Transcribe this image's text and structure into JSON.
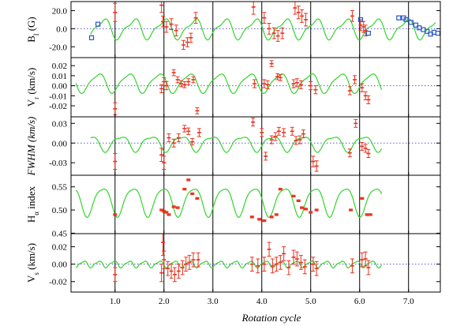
{
  "chart_data": {
    "type": "scatter",
    "description": "Five stacked time-series panels sharing a rotation-cycle x axis; red points with error bars are measurements, green curves are model fits, blue squares are additional B_l measurements.",
    "xlabel": "Rotation cycle",
    "xlim": [
      0.1,
      7.65
    ],
    "xticks": [
      1.0,
      2.0,
      3.0,
      4.0,
      5.0,
      6.0,
      7.0
    ],
    "xtick_labels": [
      "1.0",
      "2.0",
      "3.0",
      "4.0",
      "5.0",
      "6.0",
      "7.0"
    ],
    "vertical_grid": [
      1,
      2,
      3,
      4,
      5,
      6,
      7
    ],
    "zero_line": "dotted blue",
    "colors": {
      "data": "#e8321e",
      "model": "#33d42c",
      "blue_data": "#2a55c9",
      "zero": "#5b5bd8",
      "axis": "#000000"
    },
    "panels": [
      {
        "id": "bl",
        "ylabel_main": "B",
        "ylabel_sub": "l",
        "ylabel_rest": " (G)",
        "ylim": [
          -32,
          30
        ],
        "yticks": [
          20,
          0,
          -20
        ],
        "ytick_labels": [
          "20.0",
          "0.0",
          "-20.0"
        ],
        "zero_line": true,
        "model": {
          "base": 0,
          "amp": 10,
          "period": 0.62,
          "phase": 0.03,
          "h2amp": 0.35,
          "h2phase": 0.5,
          "x0": 0.5,
          "x1": 7.55
        },
        "points": [
          [
            1.0,
            18,
            10
          ],
          [
            1.95,
            26,
            8
          ],
          [
            1.98,
            8,
            6
          ],
          [
            2.05,
            2,
            6
          ],
          [
            2.15,
            5,
            6
          ],
          [
            2.25,
            -2,
            6
          ],
          [
            2.4,
            -18,
            5
          ],
          [
            2.48,
            -15,
            5
          ],
          [
            2.55,
            -10,
            5
          ],
          [
            2.65,
            12,
            6
          ],
          [
            3.83,
            24,
            8
          ],
          [
            4.05,
            12,
            6
          ],
          [
            4.15,
            0,
            6
          ],
          [
            4.25,
            -5,
            6
          ],
          [
            4.33,
            -8,
            6
          ],
          [
            4.42,
            -5,
            6
          ],
          [
            4.68,
            23,
            7
          ],
          [
            4.75,
            18,
            7
          ],
          [
            4.82,
            14,
            7
          ],
          [
            4.9,
            10,
            7
          ],
          [
            5.85,
            14,
            6
          ],
          [
            6.02,
            4,
            6
          ],
          [
            6.08,
            2,
            6
          ],
          [
            6.12,
            -2,
            6
          ]
        ],
        "blue_points": [
          [
            0.52,
            -10
          ],
          [
            0.65,
            5
          ],
          [
            6.02,
            10
          ],
          [
            6.18,
            -5
          ],
          [
            6.8,
            12
          ],
          [
            6.9,
            12
          ],
          [
            6.95,
            10
          ],
          [
            7.05,
            7
          ],
          [
            7.15,
            4
          ],
          [
            7.22,
            1
          ],
          [
            7.3,
            -1
          ],
          [
            7.38,
            -3
          ],
          [
            7.45,
            -6
          ],
          [
            7.52,
            -4
          ],
          [
            7.6,
            -5
          ]
        ]
      },
      {
        "id": "vr",
        "ylabel_main": "V",
        "ylabel_sub": "r",
        "ylabel_rest": " (km/s)",
        "ylim": [
          -0.031,
          0.028
        ],
        "yticks": [
          0.02,
          0.01,
          0.0,
          -0.01,
          -0.02
        ],
        "ytick_labels": [
          "0.02",
          "0.01",
          "0.00",
          "-0.01",
          "-0.02"
        ],
        "zero_line": true,
        "model": {
          "base": 0.003,
          "amp": 0.009,
          "period": 0.62,
          "phase": 0.2,
          "h2amp": 0.25,
          "h2phase": 0.8,
          "x0": 0.2,
          "x1": 6.45
        },
        "points": [
          [
            1.0,
            -0.023,
            0.006
          ],
          [
            1.95,
            -0.003,
            0.004
          ],
          [
            2.0,
            0.004,
            0.004
          ],
          [
            2.05,
            0.0,
            0.004
          ],
          [
            2.2,
            0.013,
            0.003
          ],
          [
            2.28,
            0.006,
            0.003
          ],
          [
            2.35,
            0.002,
            0.003
          ],
          [
            2.42,
            0.001,
            0.003
          ],
          [
            2.5,
            0.004,
            0.003
          ],
          [
            2.6,
            0.006,
            0.003
          ],
          [
            2.68,
            -0.025,
            0.003
          ],
          [
            3.85,
            0.002,
            0.004
          ],
          [
            4.05,
            0.002,
            0.004
          ],
          [
            4.12,
            0.001,
            0.004
          ],
          [
            4.2,
            0.022,
            0.003
          ],
          [
            4.32,
            0.009,
            0.003
          ],
          [
            4.38,
            0.008,
            0.003
          ],
          [
            4.65,
            0.002,
            0.004
          ],
          [
            4.72,
            0.003,
            0.004
          ],
          [
            4.8,
            0.001,
            0.004
          ],
          [
            5.0,
            0.0,
            0.004
          ],
          [
            5.1,
            -0.004,
            0.004
          ],
          [
            5.8,
            -0.005,
            0.004
          ],
          [
            5.9,
            0.006,
            0.004
          ],
          [
            6.05,
            -0.002,
            0.004
          ],
          [
            6.12,
            -0.01,
            0.004
          ],
          [
            6.18,
            -0.014,
            0.004
          ]
        ]
      },
      {
        "id": "fwhm",
        "ylabel_main": "FWHM (km/s)",
        "ylabel_sub": "",
        "ylabel_rest": "",
        "ylabel_italic": true,
        "ylim": [
          -0.049,
          0.04
        ],
        "yticks": [
          0.03,
          0.0,
          -0.03
        ],
        "ytick_labels": [
          "0.03",
          "0.00",
          "-0.03"
        ],
        "zero_line": true,
        "model": {
          "base": 0.0,
          "amp": 0.011,
          "period": 0.62,
          "phase": 0.45,
          "h2amp": 0.3,
          "h2phase": 0.2,
          "x0": 0.5,
          "x1": 6.45
        },
        "points": [
          [
            1.0,
            -0.028,
            0.012
          ],
          [
            1.95,
            -0.018,
            0.01
          ],
          [
            2.0,
            -0.03,
            0.01
          ],
          [
            2.1,
            0.008,
            0.006
          ],
          [
            2.2,
            0.0,
            0.006
          ],
          [
            2.3,
            0.008,
            0.006
          ],
          [
            2.42,
            0.022,
            0.005
          ],
          [
            2.5,
            0.018,
            0.005
          ],
          [
            2.58,
            0.002,
            0.005
          ],
          [
            2.72,
            0.016,
            0.006
          ],
          [
            3.82,
            0.032,
            0.006
          ],
          [
            4.0,
            0.016,
            0.006
          ],
          [
            4.08,
            -0.02,
            0.006
          ],
          [
            4.2,
            0.005,
            0.006
          ],
          [
            4.28,
            0.01,
            0.006
          ],
          [
            4.35,
            0.018,
            0.006
          ],
          [
            4.45,
            0.016,
            0.006
          ],
          [
            4.62,
            0.018,
            0.006
          ],
          [
            4.7,
            0.004,
            0.006
          ],
          [
            4.78,
            0.005,
            0.006
          ],
          [
            4.85,
            0.014,
            0.006
          ],
          [
            5.05,
            -0.028,
            0.008
          ],
          [
            5.12,
            -0.035,
            0.008
          ],
          [
            5.8,
            -0.015,
            0.006
          ],
          [
            5.92,
            0.03,
            0.006
          ],
          [
            6.05,
            -0.005,
            0.006
          ],
          [
            6.12,
            -0.008,
            0.006
          ],
          [
            6.18,
            -0.016,
            0.006
          ]
        ]
      },
      {
        "id": "halpha",
        "ylabel_main": "H",
        "ylabel_sub": "α",
        "ylabel_rest": " index",
        "ylim": [
          0.449,
          0.575
        ],
        "yticks": [
          0.55,
          0.5,
          0.45
        ],
        "ytick_labels": [
          "0.55",
          "0.50",
          "0.45"
        ],
        "zero_line": false,
        "model": {
          "base": 0.52,
          "amp": 0.03,
          "period": 0.62,
          "phase": 0.05,
          "h2amp": 0.2,
          "h2phase": 0.4,
          "x0": 0.2,
          "x1": 6.45
        },
        "points": [
          [
            1.0,
            0.49,
            0.002
          ],
          [
            1.95,
            0.5,
            0.002
          ],
          [
            2.0,
            0.497,
            0.002
          ],
          [
            2.05,
            0.495,
            0.002
          ],
          [
            2.1,
            0.49,
            0.002
          ],
          [
            2.2,
            0.507,
            0.002
          ],
          [
            2.28,
            0.505,
            0.002
          ],
          [
            2.42,
            0.545,
            0.002
          ],
          [
            2.5,
            0.565,
            0.002
          ],
          [
            2.58,
            0.535,
            0.002
          ],
          [
            2.68,
            0.525,
            0.002
          ],
          [
            3.8,
            0.485,
            0.002
          ],
          [
            3.95,
            0.48,
            0.002
          ],
          [
            4.05,
            0.477,
            0.002
          ],
          [
            4.2,
            0.485,
            0.002
          ],
          [
            4.3,
            0.49,
            0.002
          ],
          [
            4.38,
            0.545,
            0.002
          ],
          [
            4.65,
            0.53,
            0.002
          ],
          [
            4.75,
            0.52,
            0.002
          ],
          [
            4.82,
            0.505,
            0.002
          ],
          [
            4.9,
            0.502,
            0.002
          ],
          [
            5.0,
            0.495,
            0.002
          ],
          [
            5.12,
            0.5,
            0.002
          ],
          [
            5.82,
            0.5,
            0.002
          ],
          [
            6.05,
            0.525,
            0.002
          ],
          [
            6.15,
            0.49,
            0.002
          ],
          [
            6.22,
            0.49,
            0.002
          ]
        ]
      },
      {
        "id": "vs",
        "ylabel_main": "V",
        "ylabel_sub": "s",
        "ylabel_rest": " (km/s)",
        "ylim": [
          -0.032,
          0.035
        ],
        "yticks": [
          0.02,
          0.0,
          -0.02
        ],
        "ytick_labels": [
          "0.02",
          "0.00",
          "-0.02"
        ],
        "zero_line": true,
        "model": {
          "base": 0.0,
          "amp": 0.0035,
          "period": 0.31,
          "phase": 0.1,
          "h2amp": 0.3,
          "h2phase": 0.6,
          "x0": 0.2,
          "x1": 6.45
        },
        "points": [
          [
            1.0,
            -0.012,
            0.008
          ],
          [
            1.95,
            -0.01,
            0.01
          ],
          [
            1.98,
            0.025,
            0.015
          ],
          [
            2.0,
            0.005,
            0.01
          ],
          [
            2.08,
            -0.005,
            0.008
          ],
          [
            2.15,
            -0.008,
            0.008
          ],
          [
            2.22,
            -0.012,
            0.008
          ],
          [
            2.3,
            -0.008,
            0.008
          ],
          [
            2.38,
            -0.004,
            0.008
          ],
          [
            2.45,
            0.0,
            0.008
          ],
          [
            2.52,
            0.002,
            0.008
          ],
          [
            2.6,
            0.005,
            0.008
          ],
          [
            2.7,
            0.005,
            0.008
          ],
          [
            3.8,
            0.0,
            0.008
          ],
          [
            3.92,
            -0.002,
            0.008
          ],
          [
            4.05,
            0.0,
            0.008
          ],
          [
            4.15,
            0.017,
            0.008
          ],
          [
            4.22,
            -0.002,
            0.008
          ],
          [
            4.3,
            0.0,
            0.008
          ],
          [
            4.38,
            0.002,
            0.008
          ],
          [
            4.45,
            0.012,
            0.008
          ],
          [
            4.55,
            -0.004,
            0.008
          ],
          [
            4.65,
            0.008,
            0.008
          ],
          [
            4.72,
            0.006,
            0.008
          ],
          [
            4.8,
            0.002,
            0.008
          ],
          [
            4.88,
            -0.003,
            0.008
          ],
          [
            5.05,
            0.0,
            0.008
          ],
          [
            5.12,
            -0.005,
            0.008
          ],
          [
            5.85,
            -0.002,
            0.008
          ],
          [
            6.05,
            0.005,
            0.008
          ],
          [
            6.12,
            0.006,
            0.008
          ],
          [
            6.18,
            -0.004,
            0.008
          ]
        ]
      }
    ]
  }
}
